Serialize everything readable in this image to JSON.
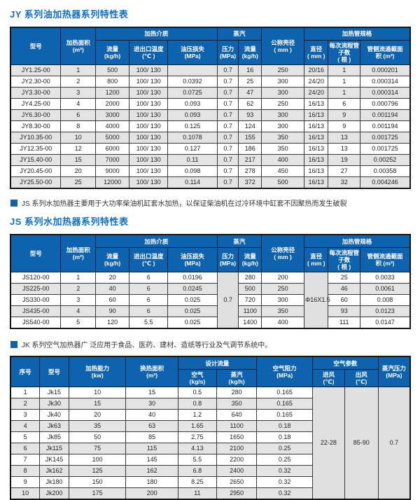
{
  "colors": {
    "header_bg": "#0f63ae",
    "title_blue": "#0e6fc4",
    "row_alt_gray": "#e4e4e4",
    "border_dark": "#161616"
  },
  "jy_section": {
    "title": "JY 系列油加热器系列特性表",
    "header": {
      "model": "型号",
      "area": "加热面积",
      "area_u": "(m²)",
      "medium_group": "加热介质",
      "flow": "流量",
      "flow_u": "(kg/h)",
      "temp": "进出口温度",
      "temp_u": "(℃ )",
      "oil_loss": "油压损失",
      "oil_loss_u": "(MPa)",
      "steam_group": "蒸汽",
      "pressure": "压力",
      "pressure_u": "(MPa)",
      "sflow": "流量",
      "sflow_u": "(kg/h)",
      "shell": "公称壳径",
      "shell_u": "( mm )",
      "tube_group": "加热管规格",
      "dia": "直径",
      "dia_u": "( mm )",
      "tubes": "每次流程管子数",
      "tubes_u": "( 根 )",
      "cross": "管侧流通截面",
      "cross_u": "积 (m²)"
    },
    "rows": [
      [
        "JY1.25-00",
        "1",
        "500",
        "100/ 130",
        "",
        "0.7",
        "16",
        "250",
        "20/16",
        "1",
        "0.000201"
      ],
      [
        "JY2.30-00",
        "2",
        "800",
        "100/ 130",
        "0.0392",
        "0.7",
        "25",
        "300",
        "24/20",
        "1",
        "0.000314"
      ],
      [
        "JY3.30-00",
        "3",
        "1200",
        "100/ 130",
        "0.0725",
        "0.7",
        "47",
        "300",
        "24/20",
        "1",
        "0.000314"
      ],
      [
        "JY4.25-00",
        "4",
        "2000",
        "100/ 130",
        "0.093",
        "0.7",
        "62",
        "250",
        "16/13",
        "6",
        "0.000796"
      ],
      [
        "JY6.30-00",
        "6",
        "3000",
        "100/ 130",
        "0.093",
        "0.7",
        "93",
        "300",
        "16/13",
        "9",
        "0.001194"
      ],
      [
        "JY8.30-00",
        "8",
        "4000",
        "100/ 130",
        "0.125",
        "0.7",
        "124",
        "300",
        "16/13",
        "9",
        "0.001194"
      ],
      [
        "JY10.35-00",
        "10",
        "5000",
        "100/ 130",
        "0.1078",
        "0.7",
        "155",
        "350",
        "16/13",
        "13",
        "0.001725"
      ],
      [
        "JY12.35-00",
        "12",
        "6000",
        "100/ 130",
        "0.127",
        "0.7",
        "186",
        "350",
        "16/13",
        "13",
        "0.001725"
      ],
      [
        "JY15.40-00",
        "15",
        "7000",
        "100/ 130",
        "0.11",
        "0.7",
        "217",
        "400",
        "16/13",
        "19",
        "0.00252"
      ],
      [
        "JY20.45-00",
        "20",
        "9000",
        "100/ 130",
        "0.098",
        "0.7",
        "278",
        "450",
        "16/13",
        "27",
        "0.00358"
      ],
      [
        "JY25.50-00",
        "25",
        "12000",
        "100/ 130",
        "0.114",
        "0.7",
        "372",
        "500",
        "16/13",
        "32",
        "0.004246"
      ]
    ]
  },
  "js_section": {
    "note": "JS 系列水加热器主要用于大功率柴油机缸套水加热，以保证柴油机在过冷环境中缸套不因聚热而发生破裂",
    "title": "JS 系列水加热器系列特性表",
    "header": {
      "model": "型号",
      "area": "加热面积",
      "area_u": "(m²)",
      "medium_group": "加热介质",
      "flow": "流量",
      "flow_u": "(kg/h)",
      "temp": "进出口温度",
      "temp_u": "(℃ )",
      "oil_loss": "油压损失",
      "oil_loss_u": "(MPa)",
      "steam_group": "蒸汽",
      "pressure": "压力",
      "pressure_u": "(MPa)",
      "sflow": "流量",
      "sflow_u": "(kg/h)",
      "shell": "公称壳径",
      "shell_u": "( mm )",
      "tube_group": "加热管规格",
      "dia": "直径",
      "dia_u": "( mm )",
      "tubes": "每次流程管子数",
      "tubes_u": "( 根 )",
      "cross": "管侧流通截面",
      "cross_u": "积 (m²)"
    },
    "rowspan_cols": [
      5,
      8
    ],
    "rows": [
      [
        "JS120-00",
        "1",
        "20",
        "6",
        "0.0196",
        "0.7",
        "280",
        "200",
        "Φ16X1.5",
        "25",
        "0.0033"
      ],
      [
        "JS225-00",
        "2",
        "40",
        "6",
        "0.0245",
        "500",
        "250",
        "46",
        "0.0061"
      ],
      [
        "JS330-00",
        "3",
        "60",
        "6",
        "0.025",
        "720",
        "300",
        "60",
        "0.008"
      ],
      [
        "JS435-00",
        "4",
        "90",
        "6",
        "0.025",
        "1100",
        "350",
        "93",
        "0.0123"
      ],
      [
        "JS540-00",
        "5",
        "120",
        "5.5",
        "0.025",
        "1400",
        "400",
        "111",
        "0.0147"
      ]
    ]
  },
  "jk_section": {
    "note": "JK 系列空气加热器广 泛应用于食品、医药、建材、造纸等行业及气调节系统中。",
    "header": {
      "index": "序号",
      "model": "型号",
      "capacity": "加热能力",
      "capacity_u": "(kw)",
      "ex_area": "换热面积",
      "ex_area_u": "(m²)",
      "design_flow_group": "设计流量",
      "air": "空气",
      "air_u": "(kg/s)",
      "steam": "蒸汽",
      "steam_u": "(kg/h)",
      "air_resist": "空气阻力",
      "air_resist_u": "(MPa)",
      "air_param_group": "空气参数",
      "inlet": "进风",
      "inlet_u": "(℃)",
      "outlet": "出风",
      "outlet_u": "(℃)",
      "steam_pressure": "蒸汽压力",
      "steam_pressure_u": "(MPa)"
    },
    "rowspan_cols": [
      7,
      8,
      9
    ],
    "rows": [
      [
        "1",
        "Jk15",
        "10",
        "15",
        "0.5",
        "280",
        "0.165",
        "22-28",
        "85-90",
        "0.7"
      ],
      [
        "2",
        "Jk30",
        "15",
        "30",
        "0.8",
        "350",
        "0.165"
      ],
      [
        "3",
        "Jk40",
        "20",
        "40",
        "1.2",
        "640",
        "0.165"
      ],
      [
        "4",
        "Jk63",
        "35",
        "63",
        "1.65",
        "1100",
        "0.18"
      ],
      [
        "5",
        "Jk85",
        "50",
        "85",
        "2.75",
        "1650",
        "0.18"
      ],
      [
        "6",
        "Jk115",
        "75",
        "115",
        "4.13",
        "2100",
        "0.25"
      ],
      [
        "7",
        "JK145",
        "100",
        "145",
        "5.5",
        "2200",
        "0.25"
      ],
      [
        "8",
        "Jk162",
        "125",
        "162",
        "6.8",
        "2400",
        "0.32"
      ],
      [
        "9",
        "Jk180",
        "150",
        "180",
        "8.25",
        "2650",
        "0.32"
      ],
      [
        "10",
        "Jk200",
        "175",
        "200",
        "11",
        "2950",
        "0.32"
      ]
    ]
  }
}
